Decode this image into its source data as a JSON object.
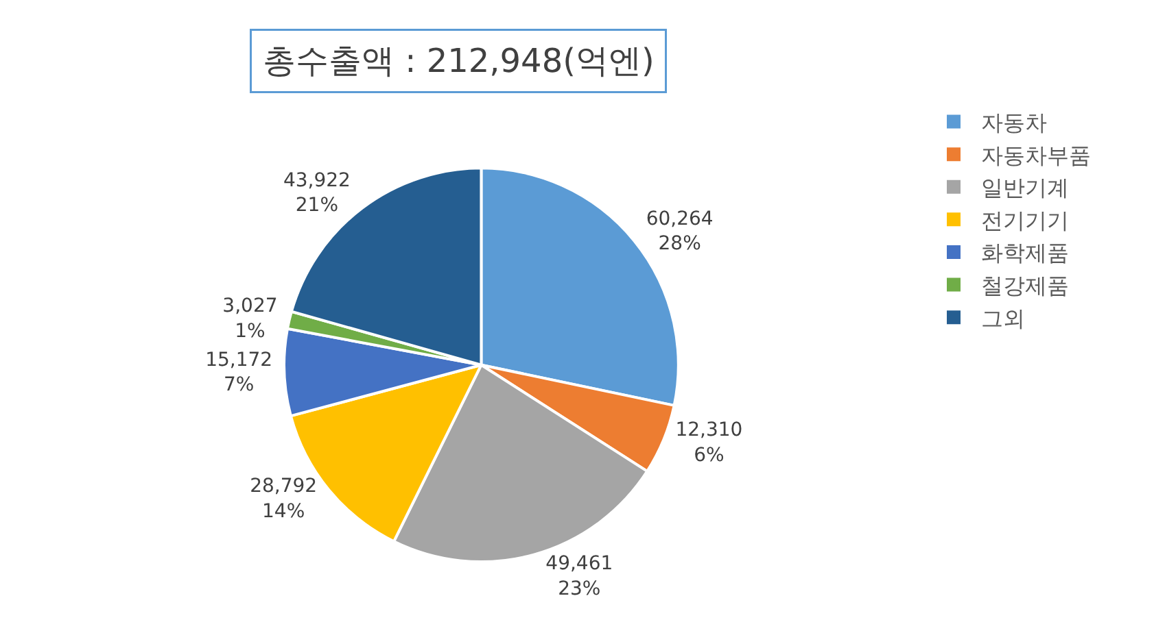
{
  "chart_data": {
    "type": "pie",
    "title": "총수출액 : 212,948(억엔)",
    "categories": [
      "자동차",
      "자동차부품",
      "일반기계",
      "전기기기",
      "화학제품",
      "철강제품",
      "그외"
    ],
    "values": [
      60264,
      12310,
      49461,
      28792,
      15172,
      3027,
      43922
    ],
    "value_labels": [
      "60,264\n28%",
      "12,310\n6%",
      "49,461\n23%",
      "28,792\n14%",
      "15,172\n7%",
      "3,027\n1%",
      "43,922\n21%"
    ],
    "colors": [
      "#5b9bd5",
      "#ed7d31",
      "#a5a5a5",
      "#ffc000",
      "#4472c4",
      "#70ad47",
      "#255e91"
    ],
    "legend": "right"
  }
}
